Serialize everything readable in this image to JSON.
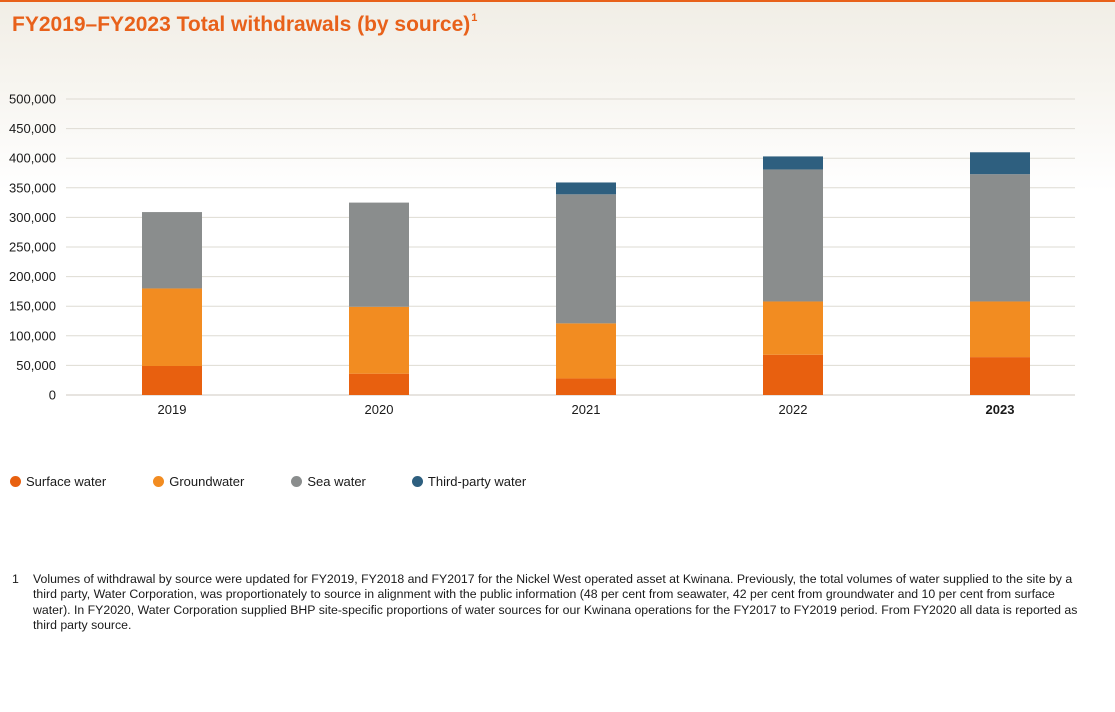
{
  "title": "FY2019–FY2023 Total withdrawals (by source)",
  "title_footnote_ref": "1",
  "colors": {
    "surface": "#e8600f",
    "ground": "#f28c21",
    "sea": "#8a8d8d",
    "third": "#2e5f7f",
    "title": "#e8611a",
    "grid": "#dedbd3"
  },
  "chart_data": {
    "type": "bar",
    "stacked": true,
    "title": "FY2019–FY2023 Total withdrawals (by source)",
    "xlabel": "",
    "ylabel": "",
    "ylim": [
      0,
      500000
    ],
    "y_ticks": [
      0,
      50000,
      100000,
      150000,
      200000,
      250000,
      300000,
      350000,
      400000,
      450000,
      500000
    ],
    "y_tick_labels": [
      "0",
      "50,000",
      "100,000",
      "150,000",
      "200,000",
      "250,000",
      "300,000",
      "350,000",
      "400,000",
      "450,000",
      "500,000"
    ],
    "categories": [
      "2019",
      "2020",
      "2021",
      "2022",
      "2023"
    ],
    "highlight_category": "2023",
    "grid": true,
    "legend_position": "bottom-left",
    "series": [
      {
        "key": "surface",
        "name": "Surface water",
        "values": [
          49000,
          36000,
          28000,
          68000,
          64000
        ]
      },
      {
        "key": "ground",
        "name": "Groundwater",
        "values": [
          131000,
          113000,
          93000,
          90000,
          94000
        ]
      },
      {
        "key": "sea",
        "name": "Sea water",
        "values": [
          129000,
          176000,
          218000,
          223000,
          215000
        ]
      },
      {
        "key": "third",
        "name": "Third-party water",
        "values": [
          0,
          0,
          20000,
          22000,
          37000
        ]
      }
    ]
  },
  "footnote": {
    "number": "1",
    "text": "Volumes of withdrawal by source were updated for FY2019, FY2018 and FY2017 for the Nickel West operated asset at Kwinana. Previously, the total volumes of water supplied to the site by a third party, Water Corporation, was proportionately to source in alignment with the public information (48 per cent from seawater, 42 per cent from groundwater and 10 per cent from surface water). In FY2020, Water Corporation supplied BHP site-specific proportions of water sources for our Kwinana operations for the FY2017 to FY2019 period. From FY2020 all data is reported as third party source."
  }
}
